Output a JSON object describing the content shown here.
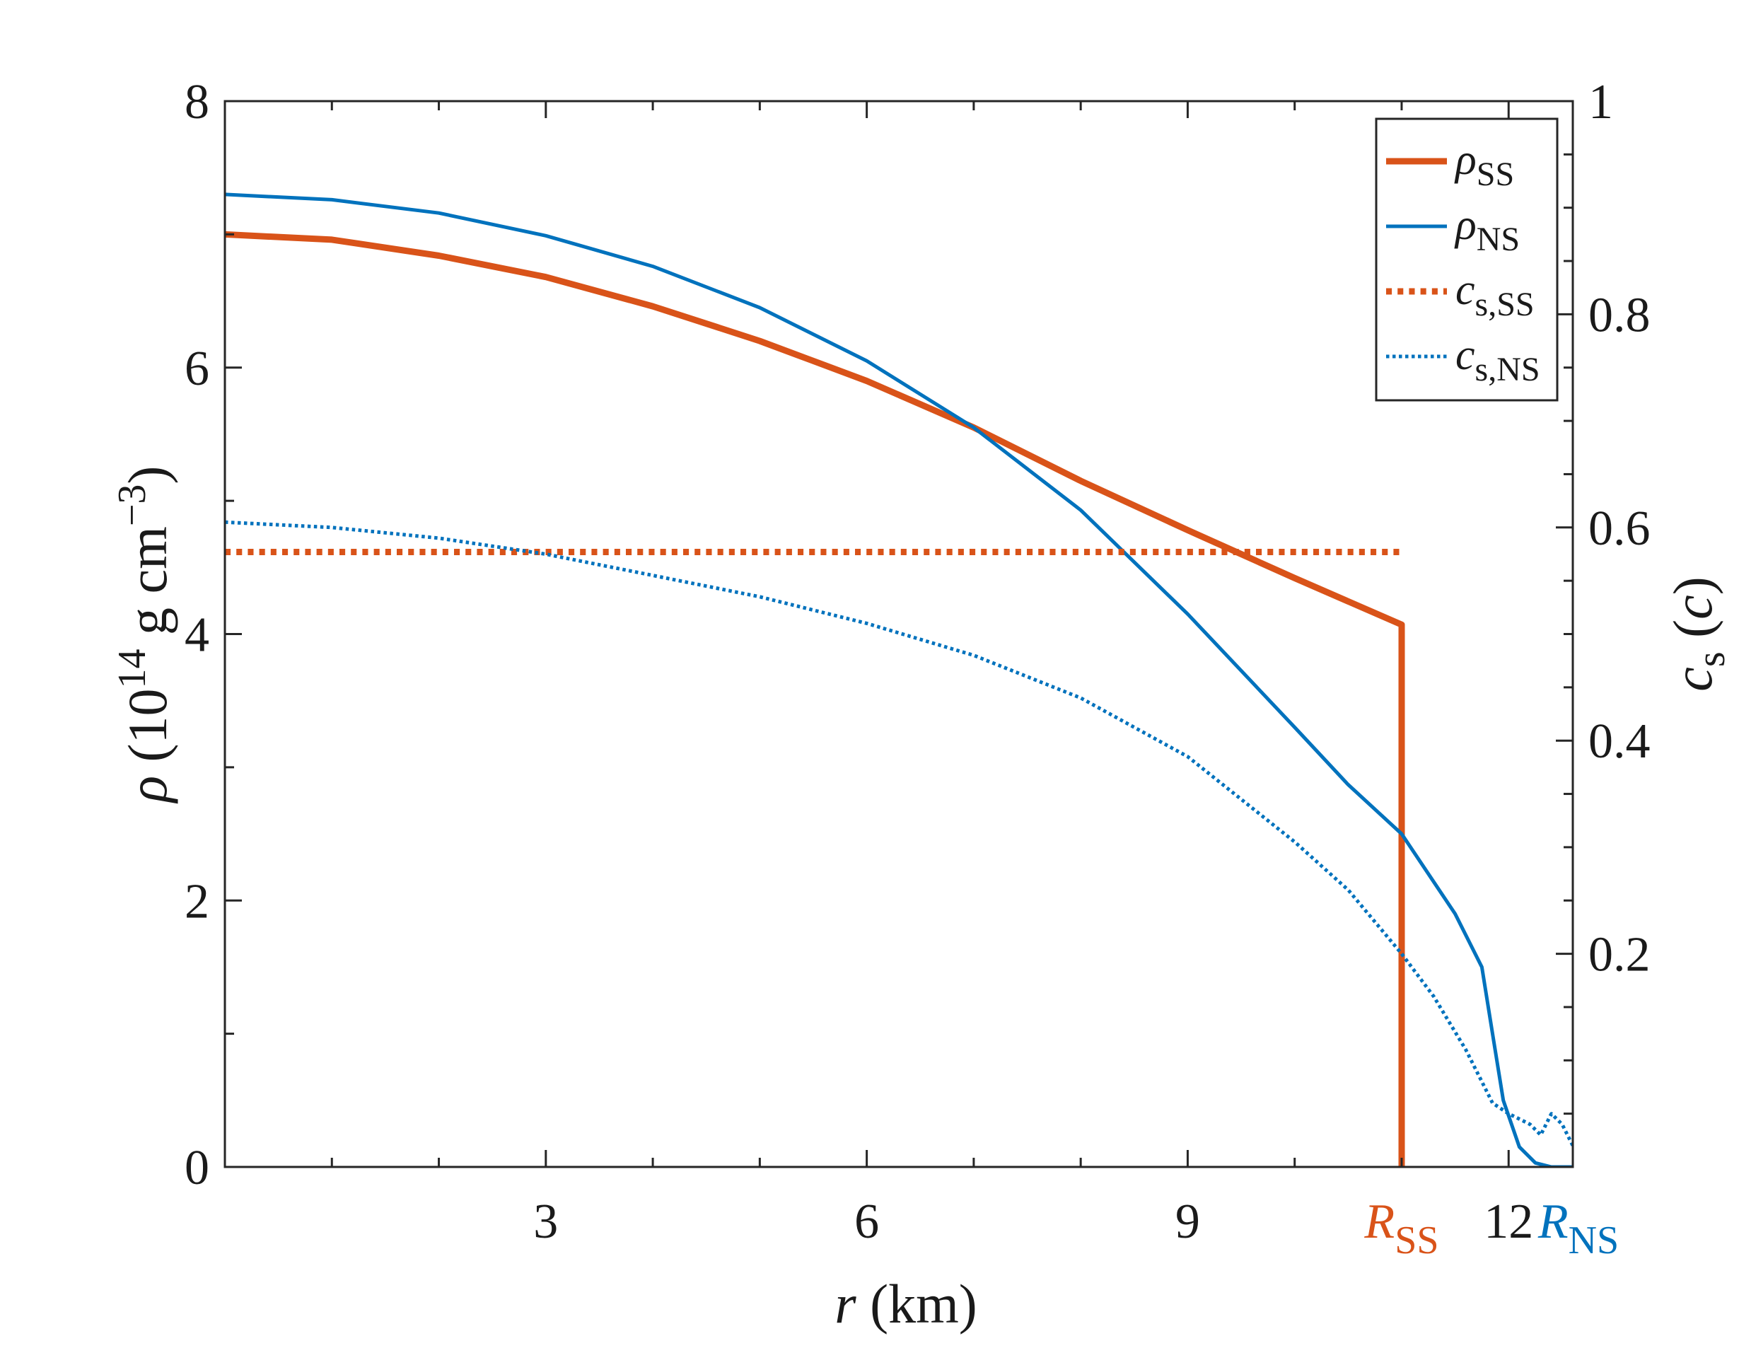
{
  "chart_data": {
    "type": "line",
    "x_axis": {
      "label_symbol": "r",
      "label_unit": "(km)",
      "range": [
        0,
        12.6
      ],
      "ticks": [
        3,
        6,
        9,
        12
      ],
      "tick_labels": [
        "3",
        "6",
        "9",
        "12"
      ],
      "minor_ticks": [
        1,
        2,
        4,
        5,
        7,
        8,
        10,
        11
      ],
      "extra_labels": [
        {
          "symbol": "R",
          "sub": "SS",
          "x": 11.0,
          "color": "#d95319"
        },
        {
          "symbol": "R",
          "sub": "NS",
          "x": 12.6,
          "color": "#0072bd"
        }
      ]
    },
    "y_left": {
      "label_symbol": "ρ",
      "label_unit_pre": "(10",
      "label_unit_exp": "14",
      "label_unit_mid": "g cm",
      "label_unit_exp2": "−3",
      "label_unit_post": ")",
      "range": [
        0,
        8
      ],
      "ticks": [
        0,
        2,
        4,
        6,
        8
      ],
      "tick_labels": [
        "0",
        "2",
        "4",
        "6",
        "8"
      ],
      "minor_ticks": [
        1,
        3,
        5,
        7
      ]
    },
    "y_right": {
      "label_symbol": "c",
      "label_sub": "s",
      "label_unit": "(c)",
      "range": [
        0,
        1
      ],
      "ticks": [
        0.2,
        0.4,
        0.6,
        0.8,
        1.0
      ],
      "tick_labels": [
        "0.2",
        "0.4",
        "0.6",
        "0.8",
        "1"
      ],
      "minor_ticks": [
        0.05,
        0.1,
        0.15,
        0.25,
        0.3,
        0.35,
        0.45,
        0.5,
        0.55,
        0.65,
        0.7,
        0.75,
        0.85,
        0.9,
        0.95
      ]
    },
    "legend": {
      "position": "top-right",
      "entries": [
        {
          "symbol": "ρ",
          "sub": "SS"
        },
        {
          "symbol": "ρ",
          "sub": "NS"
        },
        {
          "symbol": "c",
          "sub": "s,SS"
        },
        {
          "symbol": "c",
          "sub": "s,NS"
        }
      ]
    },
    "series": [
      {
        "key": "rho_ss",
        "axis": "left",
        "color": "#d95319",
        "style": "solid",
        "width": 9,
        "points": [
          [
            0,
            7.0
          ],
          [
            1,
            6.96
          ],
          [
            2,
            6.84
          ],
          [
            3,
            6.68
          ],
          [
            4,
            6.46
          ],
          [
            5,
            6.2
          ],
          [
            6,
            5.9
          ],
          [
            7,
            5.55
          ],
          [
            8,
            5.15
          ],
          [
            9,
            4.78
          ],
          [
            10,
            4.42
          ],
          [
            11.0,
            4.07
          ],
          [
            11.0,
            0
          ]
        ]
      },
      {
        "key": "rho_ns",
        "axis": "left",
        "color": "#0072bd",
        "style": "solid",
        "width": 5,
        "points": [
          [
            0,
            7.3
          ],
          [
            1,
            7.26
          ],
          [
            2,
            7.16
          ],
          [
            3,
            6.99
          ],
          [
            4,
            6.76
          ],
          [
            5,
            6.45
          ],
          [
            6,
            6.05
          ],
          [
            7,
            5.55
          ],
          [
            8,
            4.93
          ],
          [
            9,
            4.15
          ],
          [
            10,
            3.3
          ],
          [
            10.5,
            2.87
          ],
          [
            11.0,
            2.5
          ],
          [
            11.5,
            1.9
          ],
          [
            11.75,
            1.5
          ],
          [
            11.85,
            1.0
          ],
          [
            11.95,
            0.5
          ],
          [
            12.1,
            0.15
          ],
          [
            12.25,
            0.03
          ],
          [
            12.4,
            0
          ],
          [
            12.6,
            0
          ]
        ]
      },
      {
        "key": "cs_ss",
        "axis": "right",
        "color": "#d95319",
        "style": "dotted",
        "width": 9,
        "points": [
          [
            0,
            0.577
          ],
          [
            11.0,
            0.577
          ]
        ]
      },
      {
        "key": "cs_ns",
        "axis": "right",
        "color": "#0072bd",
        "style": "dotted",
        "width": 5,
        "points": [
          [
            0,
            0.605
          ],
          [
            1,
            0.6
          ],
          [
            2,
            0.59
          ],
          [
            3,
            0.575
          ],
          [
            4,
            0.555
          ],
          [
            5,
            0.535
          ],
          [
            6,
            0.51
          ],
          [
            7,
            0.48
          ],
          [
            8,
            0.44
          ],
          [
            9,
            0.385
          ],
          [
            10,
            0.305
          ],
          [
            10.5,
            0.26
          ],
          [
            11.0,
            0.2
          ],
          [
            11.3,
            0.16
          ],
          [
            11.6,
            0.11
          ],
          [
            11.75,
            0.08
          ],
          [
            11.85,
            0.06
          ],
          [
            12.0,
            0.05
          ],
          [
            12.2,
            0.04
          ],
          [
            12.3,
            0.03
          ],
          [
            12.4,
            0.05
          ],
          [
            12.5,
            0.04
          ],
          [
            12.6,
            0.02
          ]
        ]
      }
    ]
  }
}
